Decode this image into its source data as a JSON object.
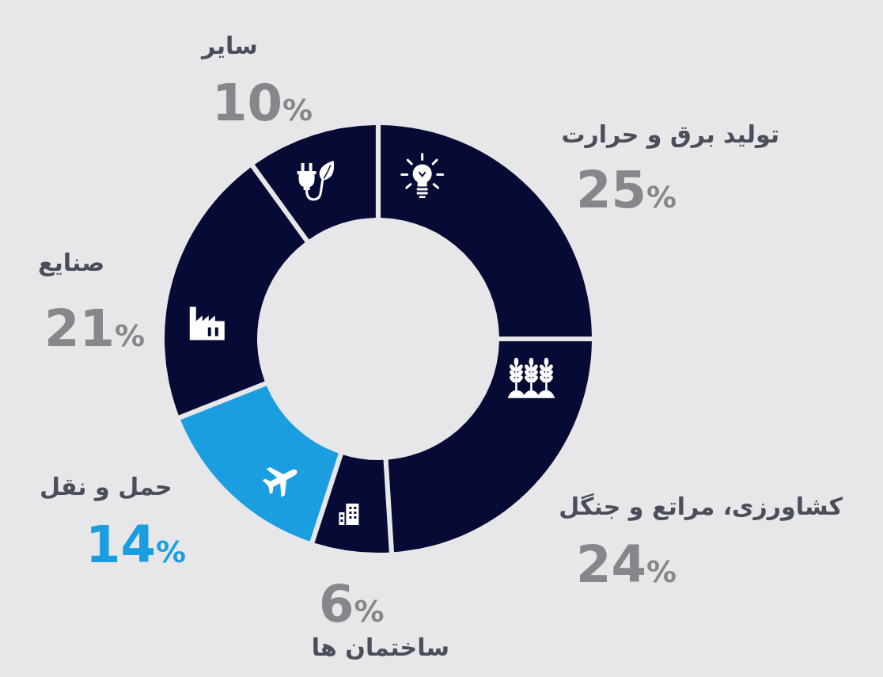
{
  "chart_data": {
    "type": "donut",
    "categories": [
      "تولید برق و حرارت",
      "کشاورزی، مراتع و جنگل",
      "ساختمان ها",
      "حمل و نقل",
      "صنایع",
      "سایر"
    ],
    "values": [
      25,
      24,
      6,
      14,
      21,
      10
    ],
    "colors": [
      "#060a35",
      "#060a35",
      "#060a35",
      "#1a9ee0",
      "#060a35",
      "#060a35"
    ],
    "value_labels": [
      "25%",
      "24%",
      "6%",
      "14%",
      "21%",
      "10%"
    ]
  }
}
